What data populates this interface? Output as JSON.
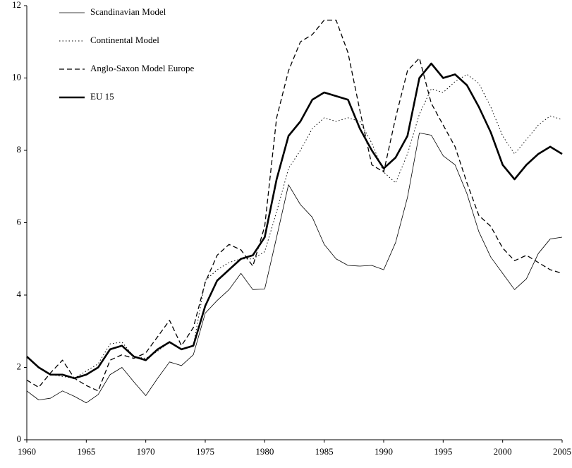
{
  "chart_data": {
    "type": "line",
    "x": [
      1960,
      1961,
      1962,
      1963,
      1964,
      1965,
      1966,
      1967,
      1968,
      1969,
      1970,
      1971,
      1972,
      1973,
      1974,
      1975,
      1976,
      1977,
      1978,
      1979,
      1980,
      1981,
      1982,
      1983,
      1984,
      1985,
      1986,
      1987,
      1988,
      1989,
      1990,
      1991,
      1992,
      1993,
      1994,
      1995,
      1996,
      1997,
      1998,
      1999,
      2000,
      2001,
      2002,
      2003,
      2004,
      2005
    ],
    "series": [
      {
        "name": "Scandinavian Model",
        "color": "#000000",
        "style": "solid",
        "width": 0.8,
        "values": [
          1.35,
          1.1,
          1.15,
          1.35,
          1.2,
          1.02,
          1.25,
          1.8,
          2.0,
          1.6,
          1.22,
          1.7,
          2.15,
          2.05,
          2.35,
          3.5,
          3.85,
          4.15,
          4.6,
          4.15,
          4.17,
          5.6,
          7.05,
          6.5,
          6.15,
          5.4,
          5.0,
          4.82,
          4.8,
          4.82,
          4.7,
          5.45,
          6.7,
          8.48,
          8.42,
          7.85,
          7.6,
          6.8,
          5.75,
          5.05,
          4.6,
          4.15,
          4.45,
          5.15,
          5.55,
          5.6
        ]
      },
      {
        "name": "Continental Model",
        "color": "#000000",
        "style": "dotted",
        "width": 1,
        "values": [
          2.3,
          2.0,
          1.8,
          1.75,
          1.7,
          1.9,
          2.1,
          2.65,
          2.7,
          2.3,
          2.25,
          2.45,
          2.7,
          2.5,
          2.6,
          4.4,
          4.7,
          4.9,
          5.0,
          5.0,
          5.2,
          6.3,
          7.5,
          8.0,
          8.6,
          8.9,
          8.8,
          8.9,
          8.8,
          8.2,
          7.4,
          7.1,
          7.9,
          9.0,
          9.7,
          9.6,
          9.9,
          10.1,
          9.85,
          9.2,
          8.4,
          7.9,
          8.3,
          8.7,
          8.95,
          8.85
        ]
      },
      {
        "name": "Anglo-Saxon Model Europe",
        "color": "#000000",
        "style": "dashed",
        "width": 1.3,
        "values": [
          1.65,
          1.45,
          1.85,
          2.2,
          1.7,
          1.5,
          1.35,
          2.2,
          2.35,
          2.25,
          2.4,
          2.85,
          3.3,
          2.6,
          3.1,
          4.35,
          5.1,
          5.4,
          5.25,
          4.8,
          5.9,
          8.9,
          10.2,
          11.0,
          11.2,
          11.6,
          11.6,
          10.7,
          9.1,
          7.6,
          7.4,
          8.9,
          10.2,
          10.55,
          9.3,
          8.7,
          8.1,
          7.1,
          6.2,
          5.9,
          5.3,
          4.95,
          5.1,
          4.9,
          4.7,
          4.6
        ]
      },
      {
        "name": "EU 15",
        "color": "#000000",
        "style": "solid",
        "width": 2.6,
        "values": [
          2.3,
          2.0,
          1.8,
          1.8,
          1.7,
          1.8,
          2.0,
          2.5,
          2.6,
          2.3,
          2.2,
          2.5,
          2.7,
          2.5,
          2.6,
          3.7,
          4.4,
          4.7,
          5.0,
          5.1,
          5.6,
          7.2,
          8.4,
          8.8,
          9.4,
          9.6,
          9.5,
          9.4,
          8.6,
          8.0,
          7.5,
          7.8,
          8.4,
          10.0,
          10.4,
          10.0,
          10.1,
          9.8,
          9.2,
          8.5,
          7.6,
          7.2,
          7.6,
          7.9,
          8.1,
          7.9
        ]
      }
    ],
    "xlim": [
      1960,
      2005
    ],
    "xticks": [
      1960,
      1965,
      1970,
      1975,
      1980,
      1985,
      1990,
      1995,
      2000,
      2005
    ],
    "ylim": [
      0,
      12
    ],
    "yticks": [
      0,
      2,
      4,
      6,
      8,
      10,
      12
    ],
    "grid": false,
    "legend": "upper-left"
  }
}
